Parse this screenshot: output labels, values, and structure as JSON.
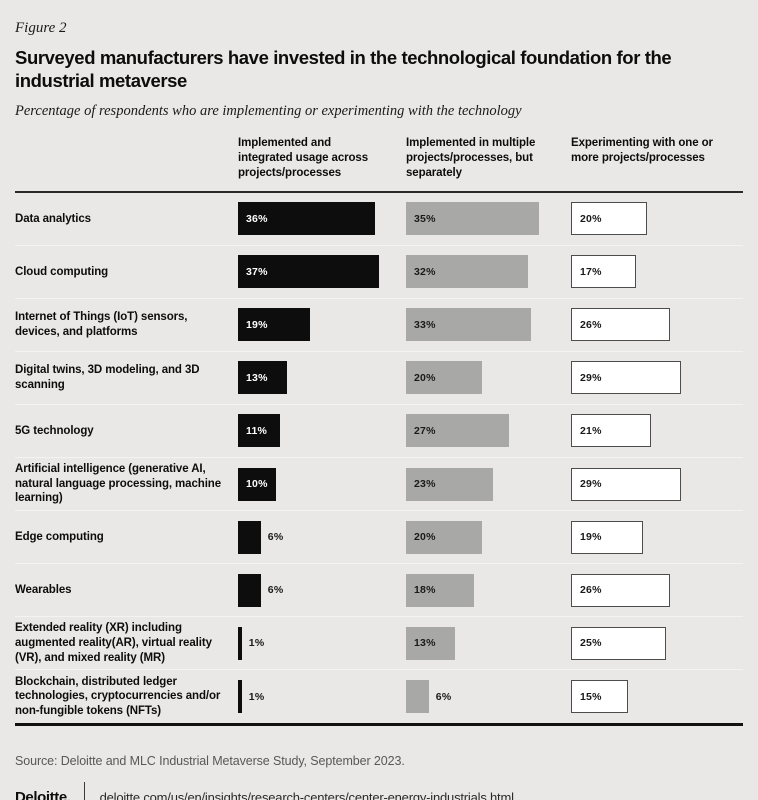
{
  "figure_label": "Figure 2",
  "title": "Surveyed manufacturers have invested in the technological foundation for the industrial metaverse",
  "subtitle": "Percentage of respondents who are implementing or experimenting with the technology",
  "source": "Source: Deloitte and MLC Industrial Metaverse Study, September 2023.",
  "footer": {
    "logo_text": "Deloitte",
    "logo_dot": ".",
    "url": "deloitte.com/us/en/insights/research-centers/center-energy-industrials.html"
  },
  "colors": {
    "background": "#e9e8e6",
    "black_bar": "#0d0d0d",
    "gray_bar": "#a8a8a6",
    "white_bar": "#ffffff",
    "white_bar_border": "#4d4d4d",
    "accent_green": "#86bc25"
  },
  "chart_data": {
    "type": "bar",
    "orientation": "horizontal",
    "unit": "%",
    "value_label_inside_threshold": 10,
    "value_range": [
      0,
      40
    ],
    "categories": [
      "Data analytics",
      "Cloud computing",
      "Internet of Things (IoT) sensors, devices, and platforms",
      "Digital twins, 3D modeling, and 3D scanning",
      "5G technology",
      "Artificial intelligence (generative AI, natural language processing, machine learning)",
      "Edge computing",
      "Wearables",
      "Extended reality (XR) including augmented reality(AR), virtual reality (VR), and mixed reality (MR)",
      "Blockchain, distributed ledger technologies, cryptocurrencies and/or non-fungible tokens (NFTs)"
    ],
    "series": [
      {
        "name": "Implemented and integrated usage across projects/processes",
        "color": "#0d0d0d",
        "text_color": "#ffffff",
        "border": null,
        "values": [
          36,
          37,
          19,
          13,
          11,
          10,
          6,
          6,
          1,
          1
        ]
      },
      {
        "name": "Implemented in multiple projects/processes, but separately",
        "color": "#a8a8a6",
        "text_color": "#1a1a1a",
        "border": null,
        "values": [
          35,
          32,
          33,
          20,
          27,
          23,
          20,
          18,
          13,
          6
        ]
      },
      {
        "name": "Experimenting with one or more projects/processes",
        "color": "#ffffff",
        "text_color": "#1a1a1a",
        "border": "#4d4d4d",
        "values": [
          20,
          17,
          26,
          29,
          21,
          29,
          19,
          26,
          25,
          15
        ]
      }
    ]
  }
}
